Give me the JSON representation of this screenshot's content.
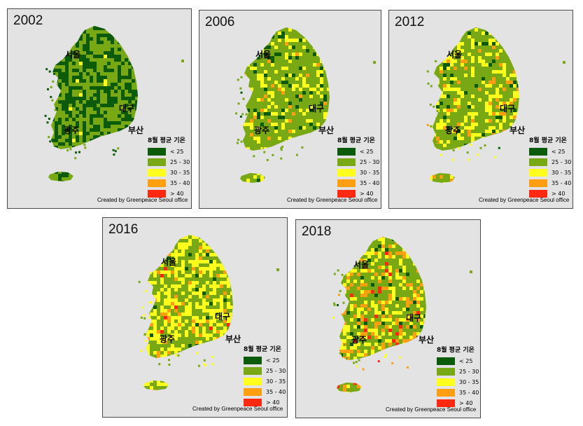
{
  "legend": {
    "title": "8월 평균 기온",
    "items": [
      {
        "label": "< 25",
        "color": "#0b5b0b"
      },
      {
        "label": "25 - 30",
        "color": "#78a814"
      },
      {
        "label": "30 - 35",
        "color": "#ffff1e"
      },
      {
        "label": "35 - 40",
        "color": "#ff9f10"
      },
      {
        "label": "> 40",
        "color": "#ff2810"
      }
    ]
  },
  "credit": "Created by Greenpeace Seoul office",
  "cities": {
    "seoul": "서울",
    "daegu": "대구",
    "gwangju": "광주",
    "busan": "부산"
  },
  "panels": [
    {
      "year": "2002",
      "mix": [
        0.45,
        0.53,
        0.02,
        0.0,
        0.0
      ]
    },
    {
      "year": "2006",
      "mix": [
        0.08,
        0.72,
        0.17,
        0.03,
        0.0
      ]
    },
    {
      "year": "2012",
      "mix": [
        0.05,
        0.64,
        0.23,
        0.08,
        0.0
      ]
    },
    {
      "year": "2016",
      "mix": [
        0.03,
        0.45,
        0.42,
        0.09,
        0.01
      ]
    },
    {
      "year": "2018",
      "mix": [
        0.05,
        0.52,
        0.23,
        0.16,
        0.04
      ]
    }
  ]
}
